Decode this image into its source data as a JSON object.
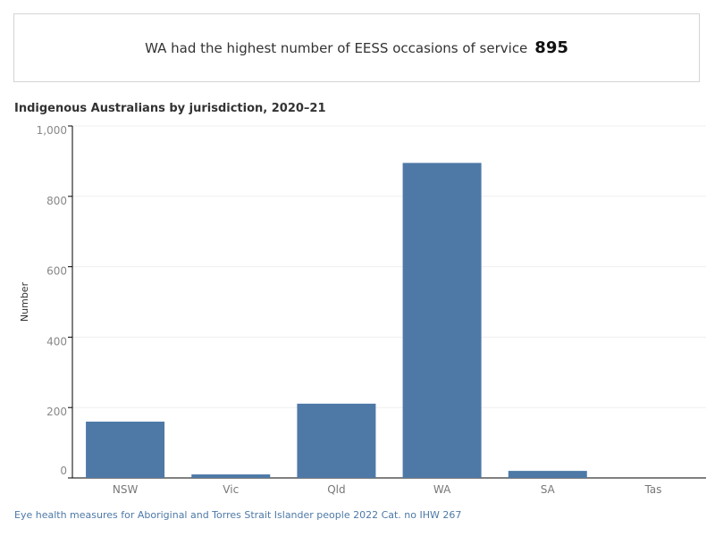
{
  "banner": {
    "text": "WA had the highest number of EESS occasions of service",
    "value": "895"
  },
  "chart_data": {
    "type": "bar",
    "title": "Indigenous Australians by jurisdiction, 2020–21",
    "xlabel": "",
    "ylabel": "Number",
    "categories": [
      "NSW",
      "Vic",
      "Qld",
      "WA",
      "SA",
      "Tas"
    ],
    "values": [
      160,
      10,
      211,
      895,
      20,
      0
    ],
    "ylim": [
      0,
      1000
    ],
    "yticks": [
      0,
      200,
      400,
      600,
      800,
      1000
    ],
    "ytick_labels": [
      "0",
      "200",
      "400",
      "600",
      "800",
      "1,000"
    ],
    "grid": true,
    "bar_color": "#4e79a7"
  },
  "source": "Eye health measures for Aboriginal and Torres Strait Islander people 2022 Cat. no IHW 267"
}
